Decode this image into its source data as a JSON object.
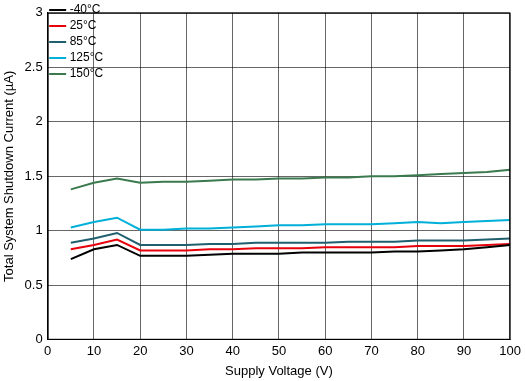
{
  "chart_data": {
    "type": "line",
    "x_label": "Supply Voltage (V)",
    "y_label": "Total System Shutdown Current (µA)",
    "x": [
      5,
      10,
      15,
      20,
      25,
      30,
      35,
      40,
      45,
      50,
      55,
      60,
      65,
      70,
      75,
      80,
      85,
      90,
      95,
      100
    ],
    "series": [
      {
        "name": "-40°C",
        "color": "#000000",
        "values": [
          0.74,
          0.83,
          0.87,
          0.77,
          0.77,
          0.77,
          0.78,
          0.79,
          0.79,
          0.79,
          0.8,
          0.8,
          0.8,
          0.8,
          0.81,
          0.81,
          0.82,
          0.83,
          0.85,
          0.87
        ]
      },
      {
        "name": "25°C",
        "color": "#e8000b",
        "values": [
          0.83,
          0.87,
          0.92,
          0.82,
          0.82,
          0.82,
          0.83,
          0.83,
          0.84,
          0.84,
          0.84,
          0.85,
          0.85,
          0.85,
          0.85,
          0.86,
          0.86,
          0.86,
          0.87,
          0.88
        ]
      },
      {
        "name": "85°C",
        "color": "#1f5f6e",
        "values": [
          0.89,
          0.93,
          0.98,
          0.87,
          0.87,
          0.87,
          0.88,
          0.88,
          0.89,
          0.89,
          0.89,
          0.89,
          0.9,
          0.9,
          0.9,
          0.91,
          0.91,
          0.91,
          0.92,
          0.93
        ]
      },
      {
        "name": "125°C",
        "color": "#00b0d8",
        "values": [
          1.03,
          1.08,
          1.12,
          1.01,
          1.01,
          1.02,
          1.02,
          1.03,
          1.04,
          1.05,
          1.05,
          1.06,
          1.06,
          1.06,
          1.07,
          1.08,
          1.07,
          1.08,
          1.09,
          1.1
        ]
      },
      {
        "name": "150°C",
        "color": "#3a7a4e",
        "values": [
          1.38,
          1.44,
          1.48,
          1.44,
          1.45,
          1.45,
          1.46,
          1.47,
          1.47,
          1.48,
          1.48,
          1.49,
          1.49,
          1.5,
          1.5,
          1.51,
          1.52,
          1.53,
          1.54,
          1.56
        ]
      }
    ],
    "xlim": [
      0,
      100
    ],
    "xticks": [
      0,
      10,
      20,
      30,
      40,
      50,
      60,
      70,
      80,
      90,
      100
    ],
    "ylim": [
      0,
      3
    ],
    "yticks": [
      0,
      0.5,
      1,
      1.5,
      2,
      2.5,
      3
    ],
    "grid": true,
    "legend": "upper left"
  }
}
